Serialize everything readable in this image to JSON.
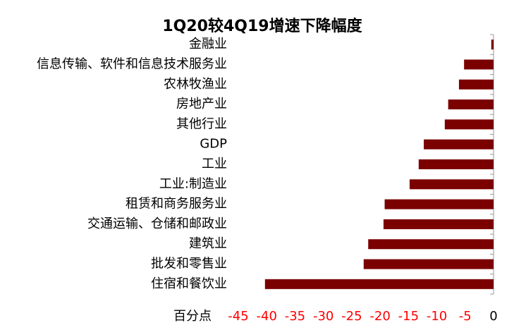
{
  "chart_data": {
    "type": "hbar",
    "title": "1Q20较4Q19增速下降幅度",
    "categories": [
      "金融业",
      "信息传输、软件和信息技术服务业",
      "农林牧渔业",
      "房地产业",
      "其他行业",
      "GDP",
      "工业",
      "工业:制造业",
      "租赁和商务服务业",
      "交通运输、仓储和邮政业",
      "建筑业",
      "批发和零售业",
      "住宿和餐饮业"
    ],
    "values": [
      -0.4,
      -5.2,
      -6.1,
      -8.0,
      -8.6,
      -12.3,
      -13.2,
      -14.8,
      -19.2,
      -19.4,
      -22.1,
      -22.9,
      -40.3
    ],
    "color": "#7b0000",
    "x_label": "百分点",
    "xlim": [
      -45,
      0
    ],
    "xticks": [
      -45,
      -40,
      -35,
      -30,
      -25,
      -20,
      -15,
      -10,
      -5,
      0
    ],
    "negative_tick_color": "#ff0000"
  }
}
